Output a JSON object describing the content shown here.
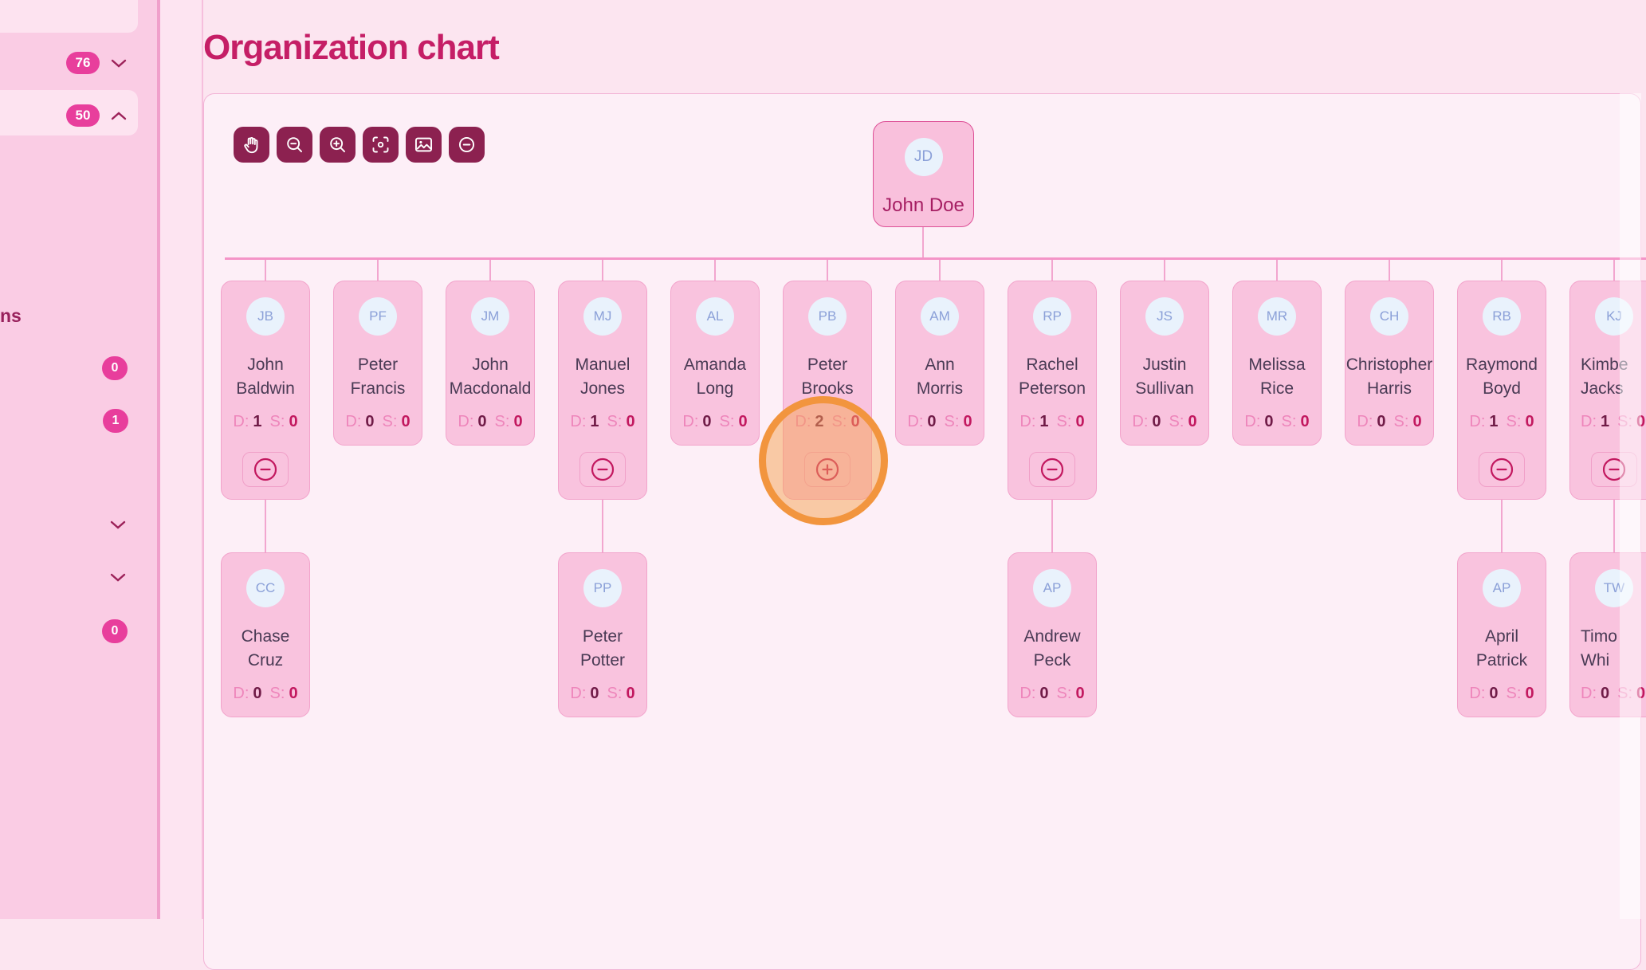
{
  "page": {
    "title": "Organization chart"
  },
  "sidebar": {
    "top_item_badge": "76",
    "active_item_badge": "50",
    "cut_label": "ns",
    "badge_a": "0",
    "badge_b": "1",
    "badge_c": "0",
    "badge_color": "#e83e9c"
  },
  "toolbar": {
    "buttons": [
      "pan-tool",
      "zoom-out",
      "zoom-in",
      "fit-view",
      "screenshot",
      "collapse-all"
    ],
    "button_color": "#8c2150"
  },
  "chart": {
    "labels": {
      "d": "D:",
      "s": "S:"
    },
    "root": {
      "initials": "JD",
      "name": "John Doe"
    },
    "nodes": [
      {
        "initials": "JB",
        "line1": "John",
        "line2": "Baldwin",
        "d": "1",
        "s": "0",
        "button": "minus"
      },
      {
        "initials": "PF",
        "line1": "Peter",
        "line2": "Francis",
        "d": "0",
        "s": "0",
        "button": null
      },
      {
        "initials": "JM",
        "line1": "John",
        "line2": "Macdonald",
        "d": "0",
        "s": "0",
        "button": null
      },
      {
        "initials": "MJ",
        "line1": "Manuel",
        "line2": "Jones",
        "d": "1",
        "s": "0",
        "button": "minus"
      },
      {
        "initials": "AL",
        "line1": "Amanda",
        "line2": "Long",
        "d": "0",
        "s": "0",
        "button": null
      },
      {
        "initials": "PB",
        "line1": "Peter",
        "line2": "Brooks",
        "d": "2",
        "s": "0",
        "button": "plus"
      },
      {
        "initials": "AM",
        "line1": "Ann",
        "line2": "Morris",
        "d": "0",
        "s": "0",
        "button": null
      },
      {
        "initials": "RP",
        "line1": "Rachel",
        "line2": "Peterson",
        "d": "1",
        "s": "0",
        "button": "minus"
      },
      {
        "initials": "JS",
        "line1": "Justin",
        "line2": "Sullivan",
        "d": "0",
        "s": "0",
        "button": null
      },
      {
        "initials": "MR",
        "line1": "Melissa",
        "line2": "Rice",
        "d": "0",
        "s": "0",
        "button": null
      },
      {
        "initials": "CH",
        "line1": "Christopher",
        "line2": "Harris",
        "d": "0",
        "s": "0",
        "button": null
      },
      {
        "initials": "RB",
        "line1": "Raymond",
        "line2": "Boyd",
        "d": "1",
        "s": "0",
        "button": "minus"
      },
      {
        "initials": "KJ",
        "line1": "Kimbe",
        "line2": "Jacks",
        "d": "1",
        "s": "0",
        "button": "minus",
        "clipped": true
      }
    ],
    "children": [
      {
        "parent_index": 0,
        "initials": "CC",
        "line1": "Chase",
        "line2": "Cruz",
        "d": "0",
        "s": "0"
      },
      {
        "parent_index": 3,
        "initials": "PP",
        "line1": "Peter",
        "line2": "Potter",
        "d": "0",
        "s": "0"
      },
      {
        "parent_index": 7,
        "initials": "AP",
        "line1": "Andrew",
        "line2": "Peck",
        "d": "0",
        "s": "0"
      },
      {
        "parent_index": 11,
        "initials": "AP",
        "line1": "April",
        "line2": "Patrick",
        "d": "0",
        "s": "0"
      },
      {
        "parent_index": 12,
        "initials": "TW",
        "line1": "Timo",
        "line2": "Whi",
        "d": "0",
        "s": "0",
        "clipped": true
      }
    ]
  }
}
